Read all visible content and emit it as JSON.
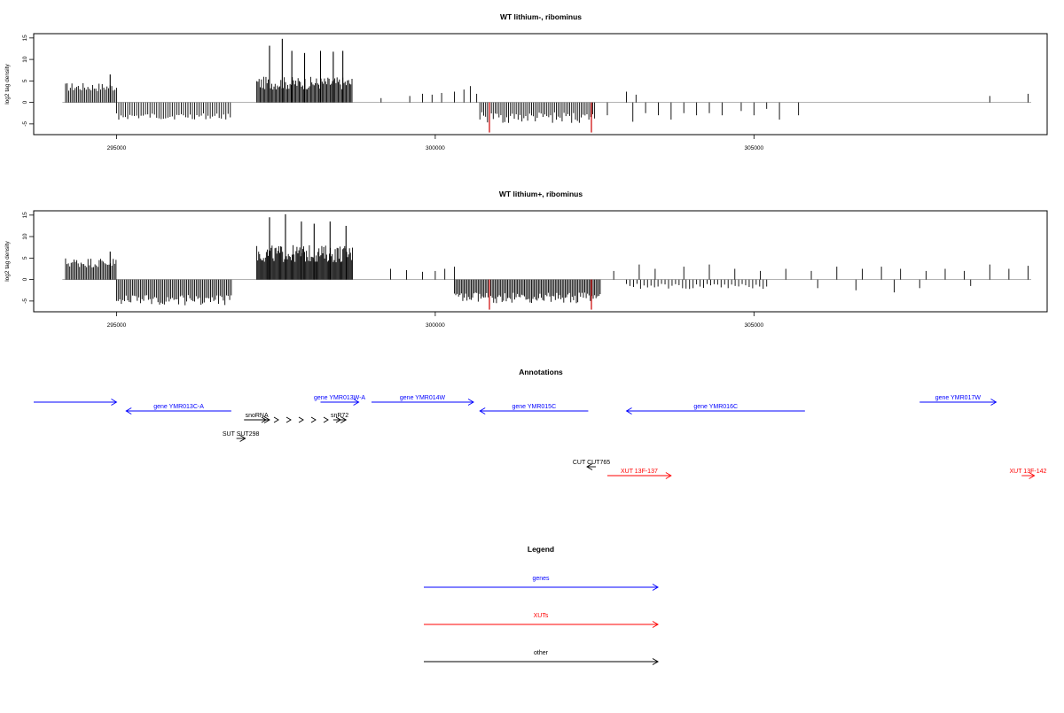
{
  "chart_data": [
    {
      "type": "bar",
      "title": "WT lithium-, ribominus",
      "ylabel": "log2 tag density",
      "xlim": [
        293700,
        309600
      ],
      "ylim": [
        -7.5,
        16
      ],
      "yticks": [
        15,
        10,
        5,
        0,
        -5
      ],
      "xticks": [
        295000,
        300000,
        305000
      ],
      "xtick_labels": [
        "295000",
        "300000",
        "305000"
      ],
      "colors": {
        "bars": "#000000",
        "highlight": "#cc0000",
        "baseline": "#999999"
      },
      "clusters": [
        {
          "start": 294200,
          "end": 295000,
          "sign": 1,
          "base": 2.6,
          "amp": 2.0,
          "step": 25
        },
        {
          "start": 295000,
          "end": 296800,
          "sign": -1,
          "base": 2.5,
          "amp": 1.5,
          "step": 35
        },
        {
          "start": 297200,
          "end": 298700,
          "sign": 1,
          "base": 3.0,
          "amp": 3.0,
          "step": 18
        },
        {
          "start": 300700,
          "end": 302500,
          "sign": -1,
          "base": 2.3,
          "amp": 2.5,
          "step": 30
        }
      ],
      "spikes": [
        {
          "x": 297400,
          "y": 13.2
        },
        {
          "x": 297600,
          "y": 14.8
        },
        {
          "x": 297750,
          "y": 12
        },
        {
          "x": 297950,
          "y": 11.5
        },
        {
          "x": 298200,
          "y": 12
        },
        {
          "x": 298400,
          "y": 11.8
        },
        {
          "x": 298550,
          "y": 12
        },
        {
          "x": 294900,
          "y": 6.5
        }
      ],
      "sparse": [
        {
          "x": 299150,
          "y": 1
        },
        {
          "x": 299600,
          "y": 1.5
        },
        {
          "x": 299800,
          "y": 2
        },
        {
          "x": 299950,
          "y": 1.8
        },
        {
          "x": 300100,
          "y": 2.2
        },
        {
          "x": 300300,
          "y": 2.5
        },
        {
          "x": 300450,
          "y": 3
        },
        {
          "x": 300550,
          "y": 3.8
        },
        {
          "x": 300650,
          "y": 2
        },
        {
          "x": 302700,
          "y": -3
        },
        {
          "x": 303000,
          "y": 2.5
        },
        {
          "x": 303150,
          "y": 1.8
        },
        {
          "x": 303100,
          "y": -4.5
        },
        {
          "x": 303300,
          "y": -2.5
        },
        {
          "x": 303500,
          "y": -3
        },
        {
          "x": 303700,
          "y": -4
        },
        {
          "x": 303900,
          "y": -2.5
        },
        {
          "x": 304100,
          "y": -3
        },
        {
          "x": 304300,
          "y": -2.5
        },
        {
          "x": 304500,
          "y": -3
        },
        {
          "x": 304800,
          "y": -2
        },
        {
          "x": 305000,
          "y": -3
        },
        {
          "x": 305200,
          "y": -1.5
        },
        {
          "x": 305400,
          "y": -4
        },
        {
          "x": 305700,
          "y": -3
        },
        {
          "x": 308700,
          "y": 1.5
        },
        {
          "x": 309300,
          "y": 2
        }
      ],
      "highlights": [
        {
          "x": 300850,
          "y": -7
        },
        {
          "x": 302450,
          "y": -7
        }
      ]
    },
    {
      "type": "bar",
      "title": "WT lithium+, ribominus",
      "ylabel": "log2 tag density",
      "xlim": [
        293700,
        309600
      ],
      "ylim": [
        -7.5,
        16
      ],
      "yticks": [
        15,
        10,
        5,
        0,
        -5
      ],
      "xticks": [
        295000,
        300000,
        305000
      ],
      "xtick_labels": [
        "295000",
        "300000",
        "305000"
      ],
      "colors": {
        "bars": "#000000",
        "highlight": "#cc0000",
        "baseline": "#999999"
      },
      "clusters": [
        {
          "start": 294200,
          "end": 295000,
          "sign": 1,
          "base": 2.8,
          "amp": 2.3,
          "step": 22
        },
        {
          "start": 295000,
          "end": 296800,
          "sign": -1,
          "base": 3.5,
          "amp": 2.5,
          "step": 25
        },
        {
          "start": 297200,
          "end": 298700,
          "sign": 1,
          "base": 4.0,
          "amp": 4.0,
          "step": 15
        },
        {
          "start": 300300,
          "end": 302600,
          "sign": -1,
          "base": 3.0,
          "amp": 2.5,
          "step": 22
        },
        {
          "start": 303000,
          "end": 305200,
          "sign": -1,
          "base": 1.0,
          "amp": 1.2,
          "step": 55
        }
      ],
      "spikes": [
        {
          "x": 297400,
          "y": 14.5
        },
        {
          "x": 297650,
          "y": 15.2
        },
        {
          "x": 297900,
          "y": 13.5
        },
        {
          "x": 298100,
          "y": 13
        },
        {
          "x": 298350,
          "y": 13.5
        },
        {
          "x": 298600,
          "y": 12.5
        },
        {
          "x": 294900,
          "y": 6.5
        }
      ],
      "sparse": [
        {
          "x": 299300,
          "y": 2.5
        },
        {
          "x": 299550,
          "y": 2.2
        },
        {
          "x": 299800,
          "y": 1.8
        },
        {
          "x": 300000,
          "y": 2
        },
        {
          "x": 300150,
          "y": 2.5
        },
        {
          "x": 300300,
          "y": 3
        },
        {
          "x": 302800,
          "y": 2
        },
        {
          "x": 303200,
          "y": 3.5
        },
        {
          "x": 303450,
          "y": 2.5
        },
        {
          "x": 303900,
          "y": 3
        },
        {
          "x": 304300,
          "y": 3.5
        },
        {
          "x": 304700,
          "y": 2.5
        },
        {
          "x": 305100,
          "y": 2
        },
        {
          "x": 305500,
          "y": 2.5
        },
        {
          "x": 305900,
          "y": 2
        },
        {
          "x": 306300,
          "y": 3
        },
        {
          "x": 306700,
          "y": 2.5
        },
        {
          "x": 307000,
          "y": 3
        },
        {
          "x": 307300,
          "y": 2.5
        },
        {
          "x": 307700,
          "y": 2
        },
        {
          "x": 308000,
          "y": 2.5
        },
        {
          "x": 308300,
          "y": 2
        },
        {
          "x": 308700,
          "y": 3.5
        },
        {
          "x": 309000,
          "y": 2.5
        },
        {
          "x": 309300,
          "y": 3.2
        },
        {
          "x": 306000,
          "y": -2
        },
        {
          "x": 306600,
          "y": -2.5
        },
        {
          "x": 307200,
          "y": -3
        },
        {
          "x": 307600,
          "y": -2
        },
        {
          "x": 308400,
          "y": -1.5
        }
      ],
      "highlights": [
        {
          "x": 300850,
          "y": -7
        },
        {
          "x": 302450,
          "y": -7
        }
      ]
    }
  ],
  "annotations": {
    "title": "Annotations",
    "xlim": [
      293700,
      309600
    ],
    "features": [
      {
        "label": "",
        "start": 293700,
        "end": 295000,
        "strand": "+",
        "color": "#0000ff",
        "row": 0
      },
      {
        "label": "gene YMR013C-A",
        "start": 295150,
        "end": 296800,
        "strand": "-",
        "color": "#0000ff",
        "row": 1
      },
      {
        "label": "gene YMR013W-A",
        "start": 298200,
        "end": 298800,
        "strand": "+",
        "color": "#0000ff",
        "row": 0
      },
      {
        "label": "gene YMR014W",
        "start": 299000,
        "end": 300600,
        "strand": "+",
        "color": "#0000ff",
        "row": 0
      },
      {
        "label": "gene YMR015C",
        "start": 300700,
        "end": 302400,
        "strand": "-",
        "color": "#0000ff",
        "row": 1
      },
      {
        "label": "gene YMR016C",
        "start": 303000,
        "end": 305800,
        "strand": "-",
        "color": "#0000ff",
        "row": 1
      },
      {
        "label": "gene YMR017W",
        "start": 307600,
        "end": 308800,
        "strand": "+",
        "color": "#0000ff",
        "row": 0
      },
      {
        "label": "snoRNA",
        "start": 297000,
        "end": 297400,
        "strand": "+",
        "color": "#000000",
        "row": 2
      },
      {
        "label": "snR72",
        "start": 298400,
        "end": 298600,
        "strand": "+",
        "color": "#000000",
        "row": 2
      },
      {
        "label": "SUT SUT298",
        "start": 296900,
        "end": 297000,
        "strand": "+",
        "color": "#000000",
        "row": 3
      },
      {
        "label": "CUT CUT765",
        "start": 302400,
        "end": 302500,
        "strand": "-",
        "color": "#000000",
        "row": 4
      },
      {
        "label": "XUT 13F-137",
        "start": 302700,
        "end": 303700,
        "strand": "+",
        "color": "#ff0000",
        "row": 5
      },
      {
        "label": "XUT 13F-142",
        "start": 309200,
        "end": 309400,
        "strand": "+",
        "color": "#ff0000",
        "row": 5
      }
    ]
  },
  "legend": {
    "title": "Legend",
    "items": [
      {
        "label": "genes",
        "color": "#0000ff"
      },
      {
        "label": "XUTs",
        "color": "#ff0000"
      },
      {
        "label": "other",
        "color": "#000000"
      }
    ]
  }
}
